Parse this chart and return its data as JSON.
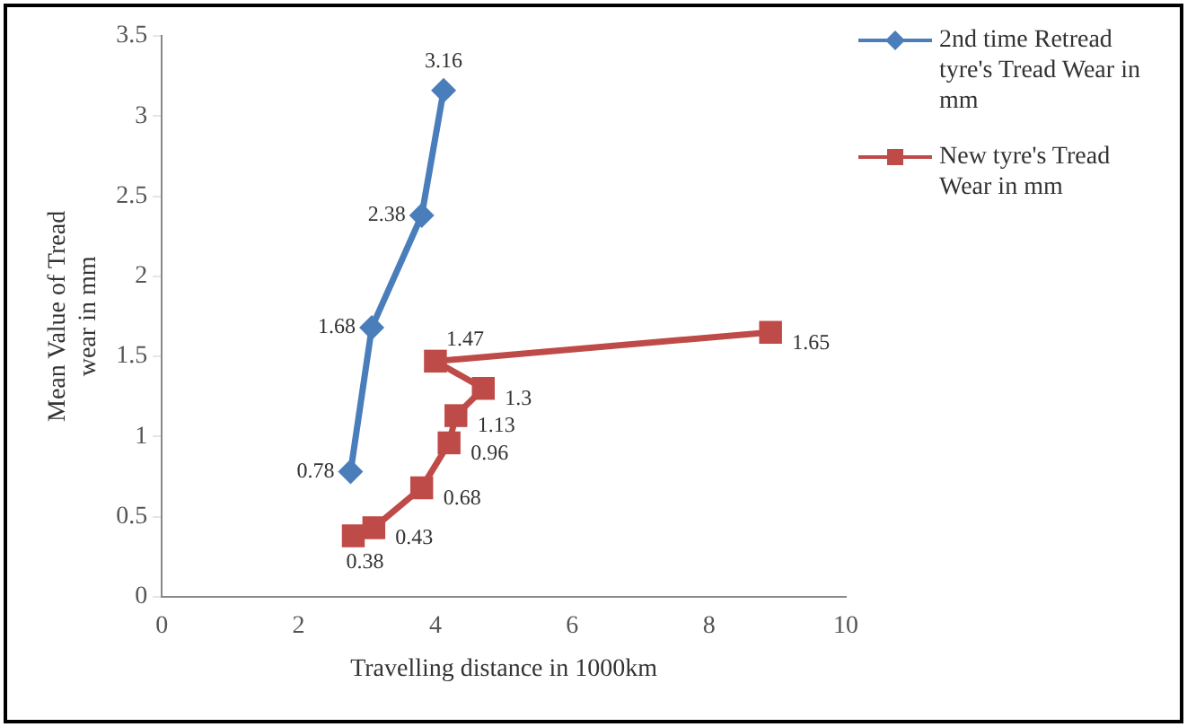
{
  "chart_data": {
    "type": "line",
    "xlabel": "Travelling distance in 1000km",
    "ylabel": "Mean Value of Tread wear in mm",
    "xlim": [
      0,
      10
    ],
    "xticks": [
      0,
      2,
      4,
      6,
      8,
      10
    ],
    "ylim": [
      0,
      3.5
    ],
    "yticks": [
      0,
      0.5,
      1,
      1.5,
      2,
      2.5,
      3,
      3.5
    ],
    "grid": false,
    "legend": "right",
    "data_labels": true,
    "line_style": "solid",
    "series": [
      {
        "name": "2nd time Retread tyre's Tread Wear in mm",
        "color": "#4a7ebb",
        "marker": "diamond",
        "x": [
          2.76,
          3.07,
          3.8,
          4.12
        ],
        "values": [
          0.78,
          1.68,
          2.38,
          3.16
        ]
      },
      {
        "name": "New tyre's Tread Wear in mm",
        "color": "#be4b48",
        "marker": "square",
        "x": [
          2.8,
          3.1,
          3.8,
          4.2,
          4.3,
          4.7,
          4.0,
          8.9
        ],
        "values": [
          0.38,
          0.43,
          0.68,
          0.96,
          1.13,
          1.3,
          1.47,
          1.65
        ]
      }
    ]
  }
}
